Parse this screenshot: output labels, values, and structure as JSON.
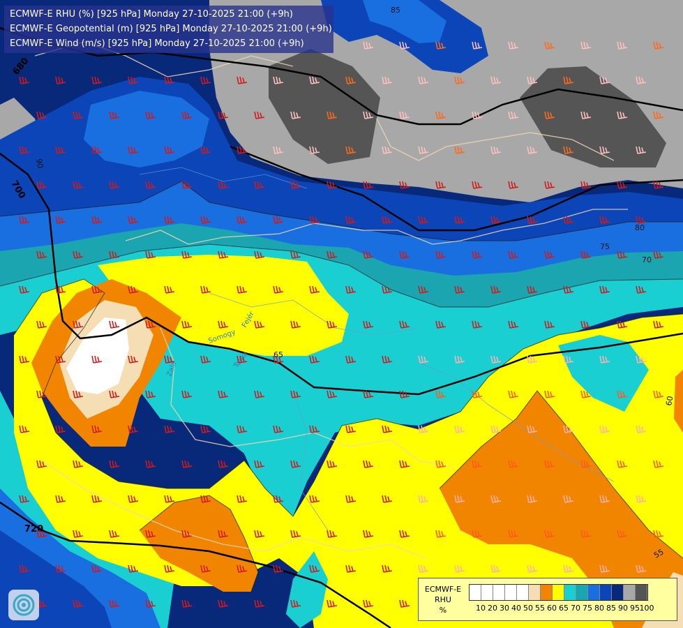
{
  "title_lines": [
    "ECMWF-E RHU (%) [925 hPa] Monday 27-10-2025 21:00 (+9h)",
    "ECMWF-E Geopotential (m) [925 hPa] Monday 27-10-2025 21:00 (+9h)",
    "ECMWF-E Wind (m/s) [925 hPa] Monday 27-10-2025 21:00 (+9h)"
  ],
  "legend": {
    "label_lines": [
      "ECMWF-E",
      "RHU",
      "%"
    ],
    "colors": [
      "#ffffff",
      "#ffffff",
      "#ffffff",
      "#ffffff",
      "#ffffff",
      "#f5deb3",
      "#f28500",
      "#ffff00",
      "#19cfd2",
      "#1aa5b0",
      "#1a6fe0",
      "#0b45b8",
      "#08297a",
      "#a8a8a8",
      "#555555"
    ],
    "tick_labels": [
      "10",
      "20",
      "30",
      "40",
      "50",
      "55",
      "60",
      "65",
      "70",
      "75",
      "80",
      "85",
      "90",
      "95",
      "100"
    ]
  },
  "contour_labels": {
    "geopotential": [
      "680",
      "700",
      "720"
    ],
    "rhu": [
      "85",
      "90",
      "80",
      "75",
      "70",
      "65",
      "60",
      "55"
    ]
  },
  "place_labels": [
    "Zala",
    "Somogy",
    "Tolna",
    "Fejér"
  ],
  "icons": {
    "logo": "ecmwf-swirl-icon",
    "wind": "wind-barb-icon"
  }
}
